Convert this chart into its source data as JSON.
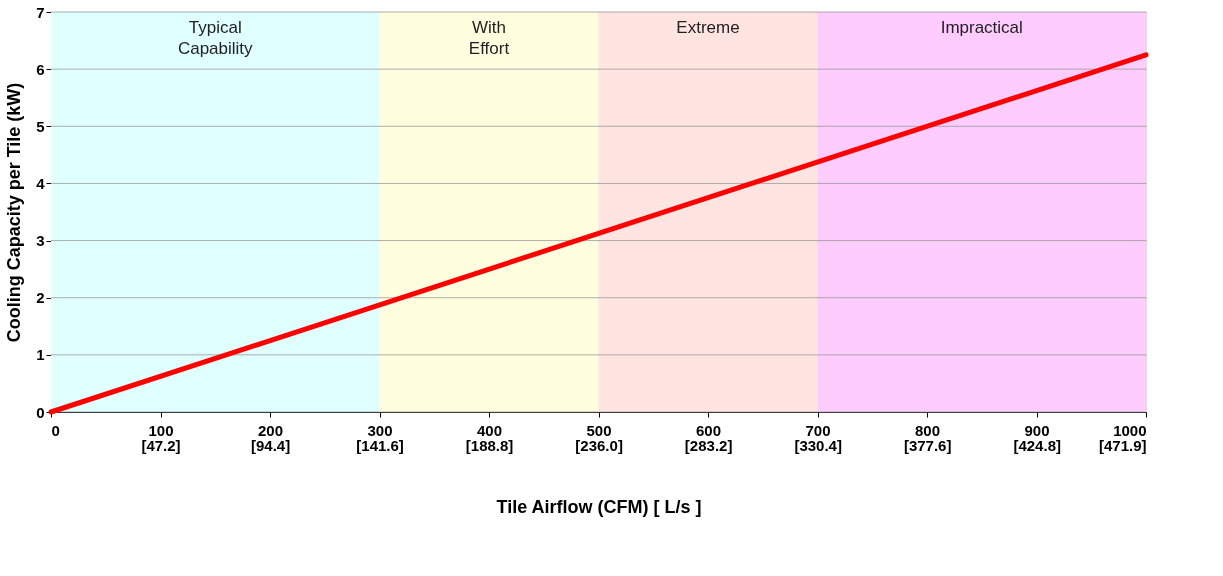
{
  "chart_data": {
    "type": "line",
    "xlabel": "Tile Airflow (CFM)  [ L/s ]",
    "ylabel": "Cooling Capacity per Tile (kW)",
    "series": [
      {
        "color": "#ff0000",
        "x": [
          0,
          1000
        ],
        "values": [
          0,
          6.25
        ]
      }
    ],
    "xlim": [
      0,
      1000
    ],
    "ylim": [
      0,
      7
    ],
    "xticks": [
      0,
      100,
      200,
      300,
      400,
      500,
      600,
      700,
      800,
      900,
      1000
    ],
    "x2lim": [
      0,
      471.9
    ],
    "x2ticks": [
      {
        "value": 47.2,
        "label": "[47.2]"
      },
      {
        "value": 94.4,
        "label": "[94.4]"
      },
      {
        "value": 141.6,
        "label": "[141.6]"
      },
      {
        "value": 188.8,
        "label": "[188.8]"
      },
      {
        "value": 236.0,
        "label": "[236.0]"
      },
      {
        "value": 283.2,
        "label": "[283.2]"
      },
      {
        "value": 330.4,
        "label": "[330.4]"
      },
      {
        "value": 377.6,
        "label": "[377.6]"
      },
      {
        "value": 424.8,
        "label": "[424.8]"
      },
      {
        "value": 471.9,
        "label": "[471.9]"
      }
    ],
    "yticks": [
      0,
      1,
      2,
      3,
      4,
      5,
      6,
      7
    ],
    "bands": [
      {
        "axis": "x",
        "from": 0,
        "to": 300,
        "label": "Typical Capability",
        "color": "#e0ffff"
      },
      {
        "axis": "x",
        "from": 300,
        "to": 500,
        "label": "With Effort",
        "color": "#ffffe0"
      },
      {
        "axis": "x",
        "from": 500,
        "to": 700,
        "label": "Extreme",
        "color": "#ffe4e1"
      },
      {
        "axis": "x",
        "from": 700,
        "to": 1000,
        "label": "Impractical",
        "color": "#ffccff"
      }
    ],
    "grid": "y",
    "marker": "none",
    "line_style": "solid"
  }
}
